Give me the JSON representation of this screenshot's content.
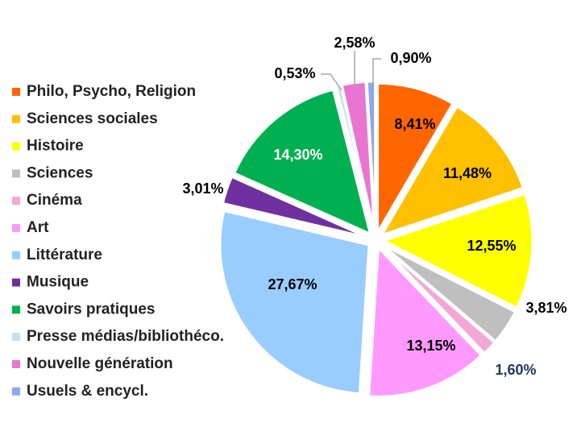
{
  "chart_data": {
    "type": "pie",
    "categories": [
      "Philo, Psycho, Religion",
      "Sciences sociales",
      "Histoire",
      "Sciences",
      "Cinéma",
      "Art",
      "Littérature",
      "Musique",
      "Savoirs pratiques",
      "Presse médias/bibliothéco.",
      "Nouvelle génération",
      "Usuels & encycl."
    ],
    "values": [
      8.41,
      11.48,
      12.55,
      3.81,
      1.6,
      13.15,
      27.67,
      3.01,
      14.3,
      0.53,
      2.58,
      0.9
    ],
    "data_labels": [
      "8,41%",
      "11,48%",
      "12,55%",
      "3,81%",
      "1,60%",
      "13,15%",
      "27,67%",
      "3,01%",
      "14,30%",
      "0,53%",
      "2,58%",
      "0,90%"
    ],
    "colors": [
      "#FF6600",
      "#FFC000",
      "#FFFF00",
      "#BFBFBF",
      "#F4A6D7",
      "#FF99FF",
      "#99CCFF",
      "#7030A0",
      "#00B050",
      "#C5E0F0",
      "#E975D0",
      "#8EA9E8"
    ],
    "label_colors": [
      "#000000",
      "#000000",
      "#000000",
      "#000000",
      "#1F3864",
      "#000000",
      "#000000",
      "#000000",
      "#ffffff",
      "#000000",
      "#000000",
      "#000000"
    ],
    "legend_position": "left"
  }
}
